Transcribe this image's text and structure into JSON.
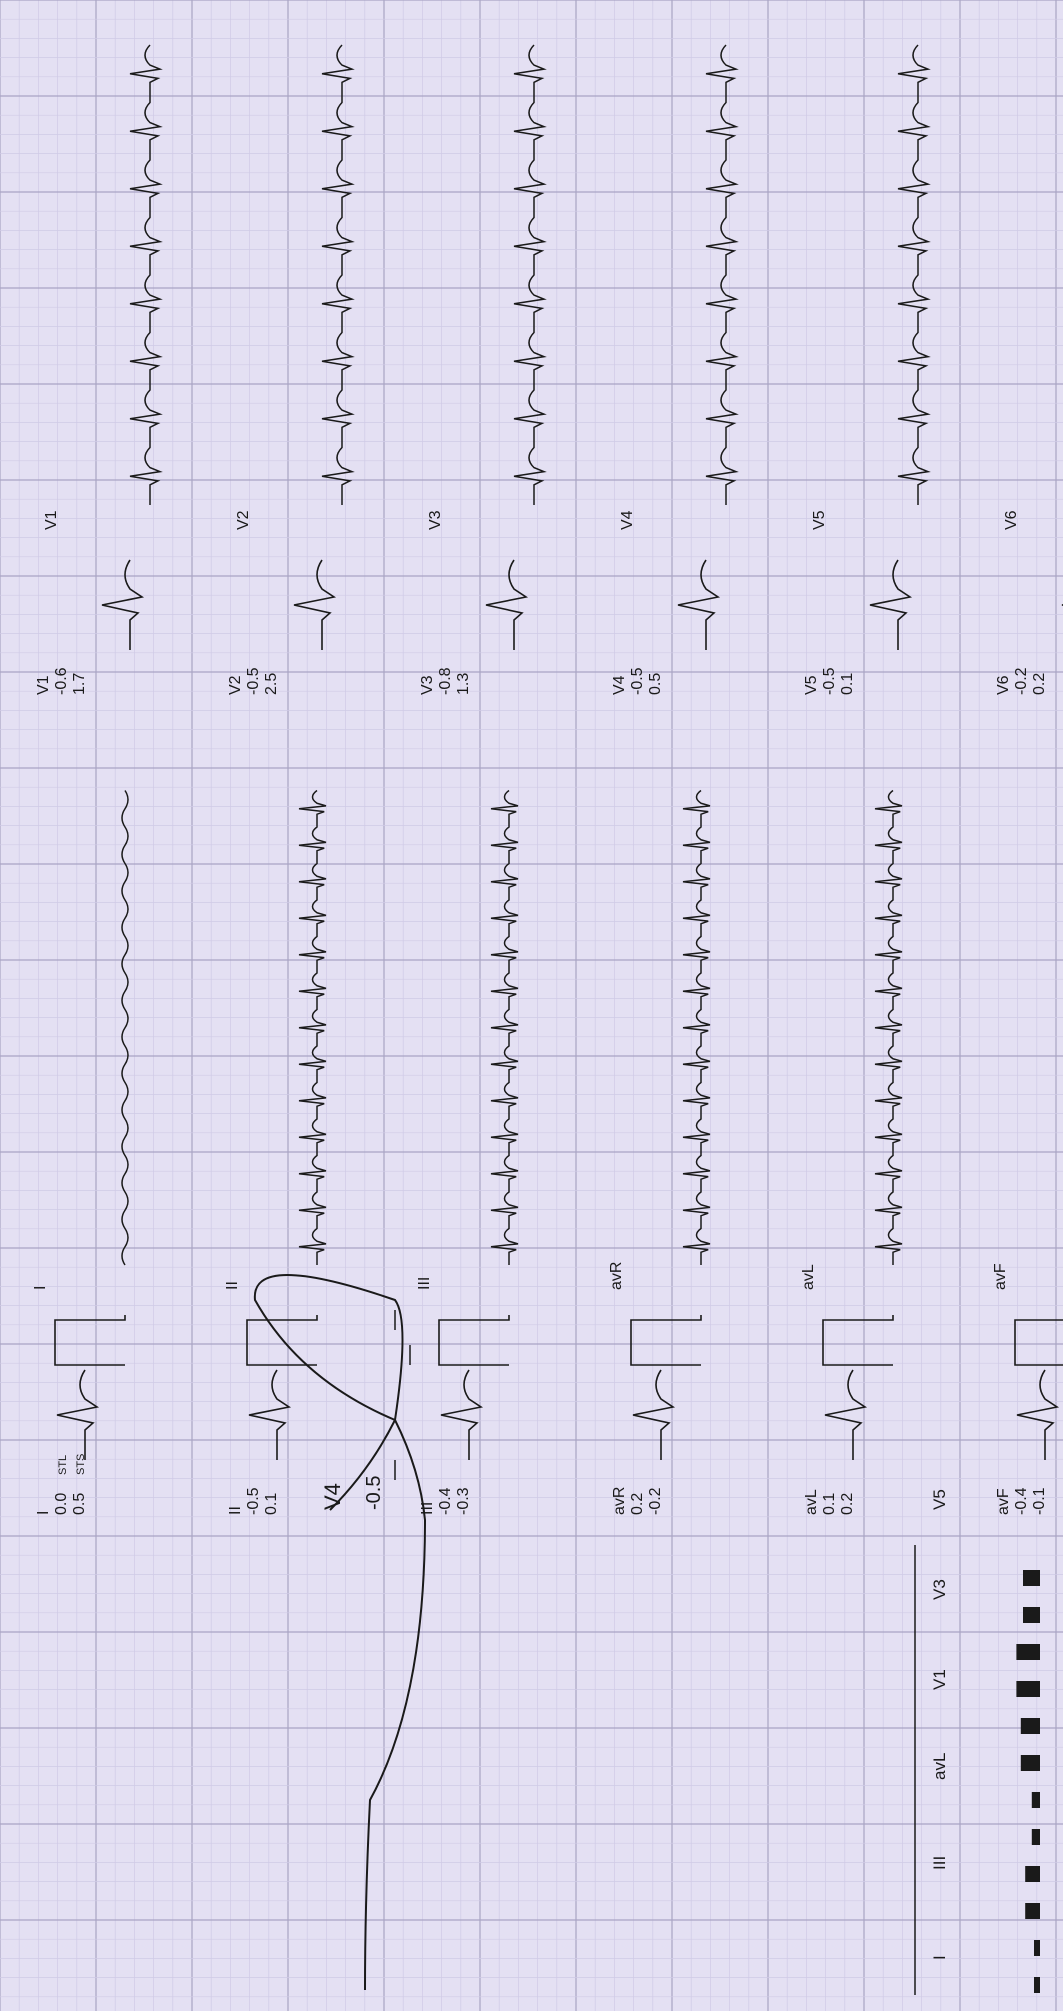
{
  "limb_leads": [
    {
      "name": "I",
      "stl": "0.0",
      "sts": "0.5"
    },
    {
      "name": "II",
      "stl": "-0.5",
      "sts": "0.1"
    },
    {
      "name": "III",
      "stl": "-0.4",
      "sts": "-0.3"
    },
    {
      "name": "avR",
      "stl": "0.2",
      "sts": "-0.2"
    },
    {
      "name": "avL",
      "stl": "0.1",
      "sts": "0.2"
    },
    {
      "name": "avF",
      "stl": "-0.4",
      "sts": "-0.1"
    }
  ],
  "chest_leads": [
    {
      "name": "V1",
      "stl": "-0.6",
      "sts": "1.7"
    },
    {
      "name": "V2",
      "stl": "-0.5",
      "sts": "2.5"
    },
    {
      "name": "V3",
      "stl": "-0.8",
      "sts": "1.3"
    },
    {
      "name": "V4",
      "stl": "-0.5",
      "sts": "0.5"
    },
    {
      "name": "V5",
      "stl": "-0.5",
      "sts": "0.1"
    },
    {
      "name": "V6",
      "stl": "-0.2",
      "sts": "0.2"
    }
  ],
  "row_labels": {
    "stl": "STL",
    "sts": "STS"
  },
  "zoom_panel": {
    "lead": "V4",
    "value": "-0.5"
  },
  "bar_chart": {
    "labels": [
      "I",
      "III",
      "avL",
      "V1",
      "V3",
      "V5"
    ],
    "values": [
      0.0,
      -0.4,
      0.1,
      -0.6,
      -0.8,
      -0.5
    ]
  },
  "colors": {
    "paper": "#e4e0f3",
    "grid_minor": "#cfcae6",
    "grid_major": "#a9a4c4",
    "trace": "#1a1a1a"
  }
}
